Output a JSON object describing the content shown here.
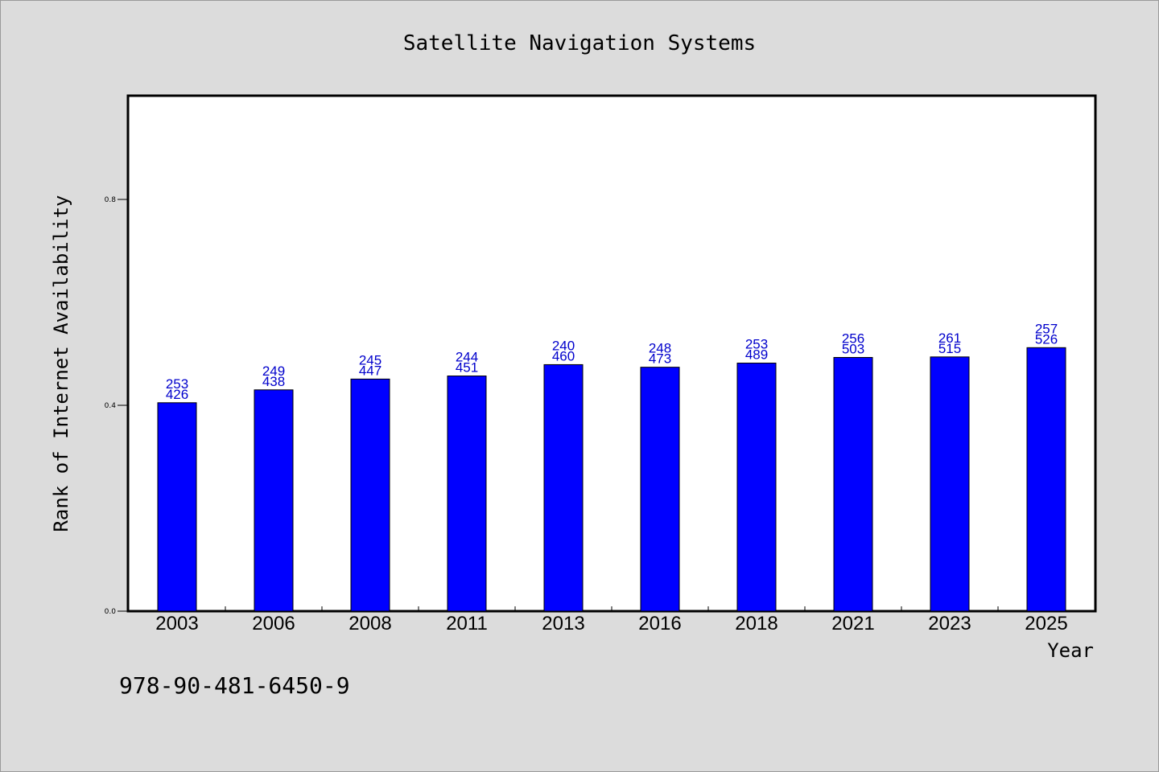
{
  "chart_data": {
    "type": "bar",
    "title": "Satellite Navigation Systems",
    "xlabel": "Year",
    "ylabel": "Rank of Internet Availability",
    "categories": [
      "2003",
      "2006",
      "2008",
      "2011",
      "2013",
      "2016",
      "2018",
      "2021",
      "2023",
      "2025"
    ],
    "values": [
      0.405,
      0.43,
      0.451,
      0.457,
      0.479,
      0.474,
      0.482,
      0.493,
      0.494,
      0.512
    ],
    "data_labels_top": [
      "253",
      "249",
      "245",
      "244",
      "240",
      "248",
      "253",
      "256",
      "261",
      "257"
    ],
    "data_labels_bottom": [
      "426",
      "438",
      "447",
      "451",
      "460",
      "473",
      "489",
      "503",
      "515",
      "526"
    ],
    "ylim": [
      0,
      1.0
    ],
    "yticks": [
      "0.0",
      "0.4",
      "0.8"
    ],
    "ytick_values": [
      0.0,
      0.4,
      0.8
    ],
    "grid": false,
    "bar_color": "#0000ff",
    "label_color": "#0000cc"
  },
  "footer": {
    "isbn": "978-90-481-6450-9"
  }
}
